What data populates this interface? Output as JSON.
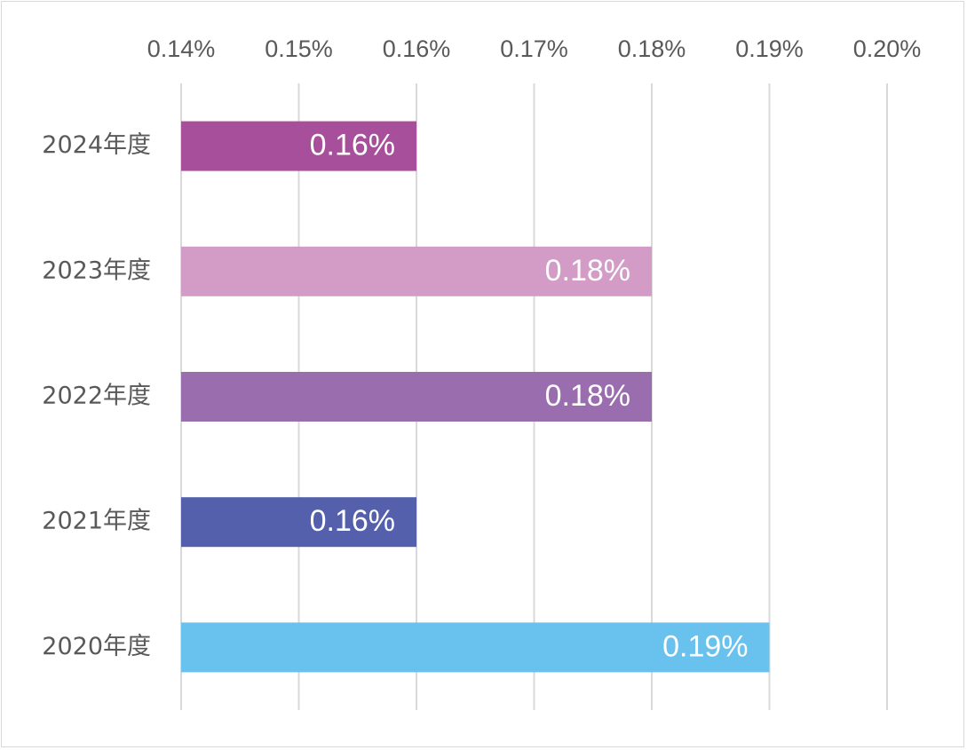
{
  "chart_data": {
    "type": "bar",
    "orientation": "horizontal",
    "categories": [
      "2024年度",
      "2023年度",
      "2022年度",
      "2021年度",
      "2020年度"
    ],
    "values": [
      0.16,
      0.18,
      0.18,
      0.16,
      0.19
    ],
    "data_labels": [
      "0.16%",
      "0.18%",
      "0.18%",
      "0.16%",
      "0.19%"
    ],
    "colors": [
      "#a84f9b",
      "#d39cc6",
      "#9a6dae",
      "#5560ad",
      "#68c2ed"
    ],
    "x_ticks": [
      0.14,
      0.15,
      0.16,
      0.17,
      0.18,
      0.19,
      0.2
    ],
    "x_tick_labels": [
      "0.14%",
      "0.15%",
      "0.16%",
      "0.17%",
      "0.18%",
      "0.19%",
      "0.20%"
    ],
    "xlim": [
      0.14,
      0.2
    ],
    "x_axis_position": "top",
    "grid": true,
    "legend": "none",
    "title": "",
    "xlabel": "",
    "ylabel": ""
  }
}
